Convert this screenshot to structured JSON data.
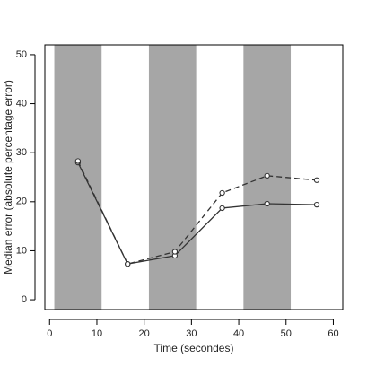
{
  "chart_data": {
    "type": "line",
    "title": "",
    "xlabel": "Time (secondes)",
    "ylabel": "Median error (absolute percentage error)",
    "xlim": [
      -1,
      62
    ],
    "ylim": [
      -2,
      52
    ],
    "xticks": [
      0,
      10,
      20,
      30,
      40,
      50,
      60
    ],
    "yticks": [
      0,
      10,
      20,
      30,
      40,
      50
    ],
    "grid": false,
    "legend": "none",
    "shaded_bands": [
      [
        1,
        11
      ],
      [
        21,
        31
      ],
      [
        41,
        51
      ]
    ],
    "colors": {
      "band": "#a6a6a6",
      "line": "#333333",
      "axis": "#000000"
    },
    "series": [
      {
        "style": "solid",
        "x": [
          6,
          16.5,
          26.5,
          36.5,
          46,
          56.5
        ],
        "y": [
          28,
          7.3,
          9.0,
          18.7,
          19.6,
          19.4
        ]
      },
      {
        "style": "dashed",
        "x": [
          6,
          16.5,
          26.5,
          36.5,
          46,
          56.5
        ],
        "y": [
          28.3,
          7.3,
          9.8,
          21.8,
          25.3,
          24.4
        ]
      }
    ]
  }
}
